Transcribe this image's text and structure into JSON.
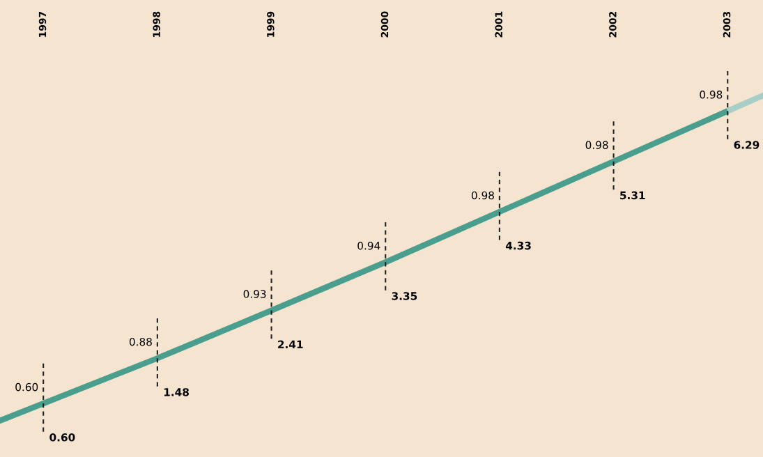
{
  "chart_data": {
    "type": "line",
    "x": [
      1997,
      1998,
      1999,
      2000,
      2001,
      2002,
      2003
    ],
    "series": [
      {
        "color": "#4a9e8e",
        "values": [
          0.6,
          1.48,
          2.41,
          3.35,
          4.33,
          5.31,
          6.29
        ],
        "value_labels": [
          "0.60",
          "1.48",
          "2.41",
          "3.35",
          "4.33",
          "5.31",
          "6.29"
        ]
      }
    ],
    "annotations": [
      {
        "text": "0.60",
        "x": 1997,
        "y": 0.6
      },
      {
        "text": "0.88",
        "x": 1998,
        "y": 1.48
      },
      {
        "text": "0.93",
        "x": 1999,
        "y": 2.41
      },
      {
        "text": "0.94",
        "x": 2000,
        "y": 3.35
      },
      {
        "text": "0.98",
        "x": 2001,
        "y": 4.33
      },
      {
        "text": "0.98",
        "x": 2002,
        "y": 5.31
      },
      {
        "text": "0.98",
        "x": 2003,
        "y": 6.29
      }
    ],
    "xlim": [
      1996.62,
      2003.31
    ],
    "xticks": [
      1997,
      1998,
      1999,
      2000,
      2001,
      2002,
      2003
    ],
    "tick_labels": "x",
    "marker": "none",
    "line_style": "solid"
  }
}
